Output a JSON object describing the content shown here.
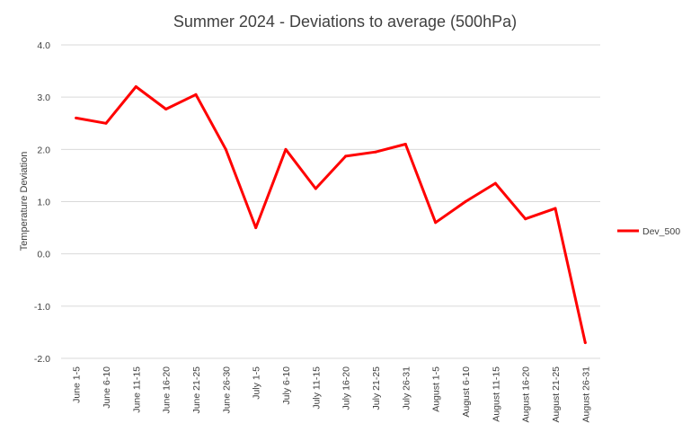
{
  "chart_data": {
    "type": "line",
    "title": "Summer 2024 - Deviations to average (500hPa)",
    "xlabel": "",
    "ylabel": "Temperature Deviation",
    "categories": [
      "June 1-5",
      "June 6-10",
      "June 11-15",
      "June 16-20",
      "June 21-25",
      "June 26-30",
      "July 1-5",
      "July 6-10",
      "July 11-15",
      "July 16-20",
      "July 21-25",
      "July 26-31",
      "August 1-5",
      "August 6-10",
      "August 11-15",
      "August 16-20",
      "August 21-25",
      "August 26-31"
    ],
    "series": [
      {
        "name": "Dev_500",
        "color": "#ff0000",
        "values": [
          2.6,
          2.5,
          3.2,
          2.77,
          3.05,
          2.0,
          0.5,
          2.0,
          1.25,
          1.87,
          1.95,
          2.1,
          0.6,
          1.0,
          1.35,
          0.67,
          0.87,
          -1.7
        ]
      }
    ],
    "ylim": [
      -2.0,
      4.0
    ],
    "yticks": [
      "-2.0",
      "-1.0",
      "0.0",
      "1.0",
      "2.0",
      "3.0",
      "4.0"
    ],
    "grid": true,
    "legend_position": "right"
  }
}
